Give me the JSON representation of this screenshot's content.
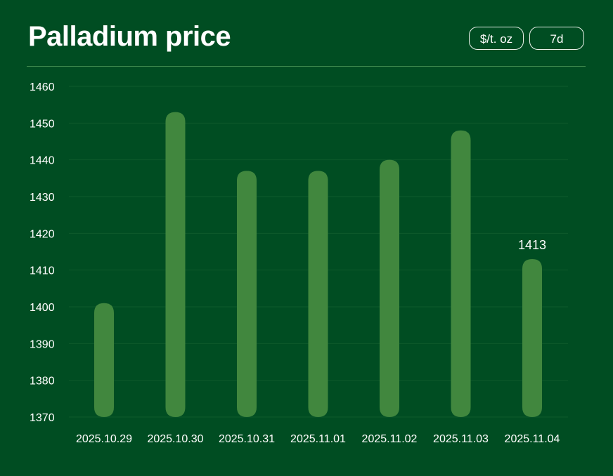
{
  "header": {
    "title": "Palladium price",
    "unit_label": "$/t. oz",
    "range_label": "7d"
  },
  "colors": {
    "background": "#004d22",
    "bar": "#41873e",
    "grid": "#0e5a2c"
  },
  "chart_data": {
    "type": "bar",
    "title": "Palladium price",
    "categories": [
      "2025.10.29",
      "2025.10.30",
      "2025.10.31",
      "2025.11.01",
      "2025.11.02",
      "2025.11.03",
      "2025.11.04"
    ],
    "values": [
      1401,
      1453,
      1437,
      1437,
      1440,
      1448,
      1413
    ],
    "ylim": [
      1370,
      1460
    ],
    "yticks": [
      1370,
      1380,
      1390,
      1400,
      1410,
      1420,
      1430,
      1440,
      1450,
      1460
    ],
    "data_labels": [
      {
        "index": 6,
        "text": "1413"
      }
    ],
    "grid": true
  }
}
